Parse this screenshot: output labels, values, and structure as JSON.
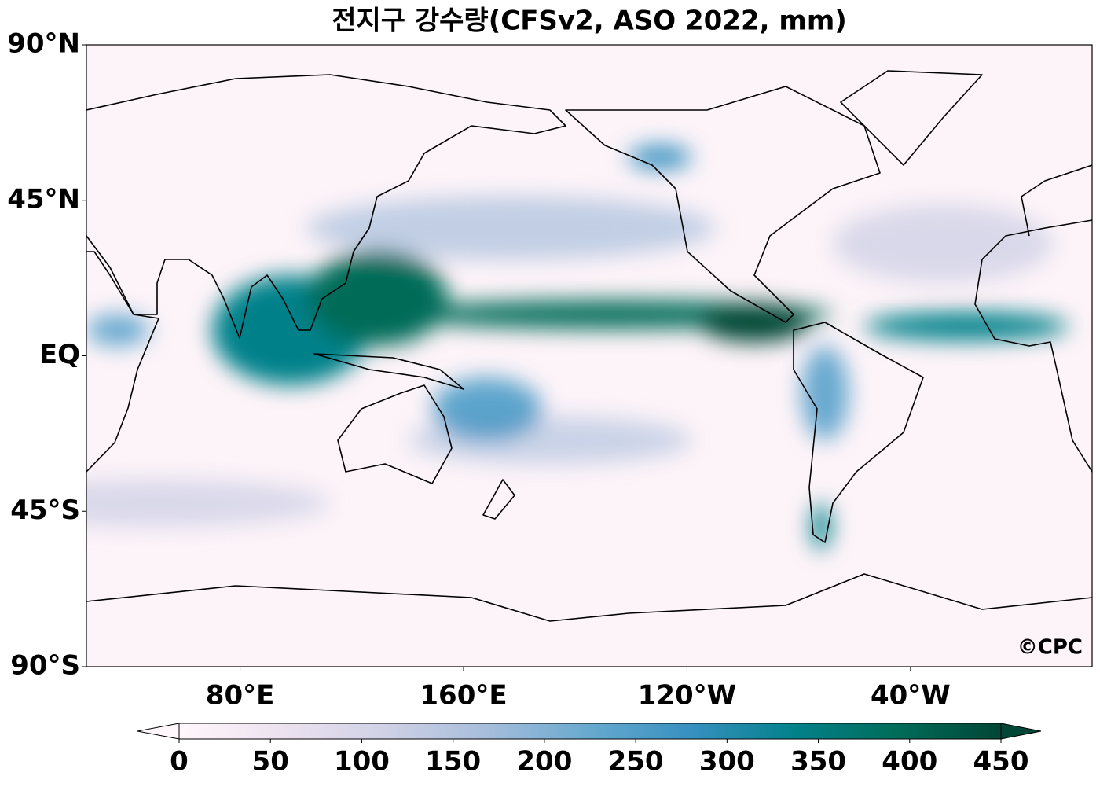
{
  "map": {
    "title": "전지구 강수량(CFSv2, ASO 2022, mm)",
    "lat_range": [
      -90,
      90
    ],
    "lon_range": [
      25,
      385
    ],
    "lat_labels": [
      {
        "value": 90,
        "label": "90°N"
      },
      {
        "value": 45,
        "label": "45°N"
      },
      {
        "value": 0,
        "label": "EQ"
      },
      {
        "value": -45,
        "label": "45°S"
      },
      {
        "value": -90,
        "label": "90°S"
      }
    ],
    "lon_labels": [
      {
        "value": 80,
        "label": "80°E"
      },
      {
        "value": 160,
        "label": "160°E"
      },
      {
        "value": 240,
        "label": "120°W"
      },
      {
        "value": 320,
        "label": "40°W"
      }
    ],
    "colorbar": {
      "lim": [
        0,
        450
      ],
      "ticks": [
        0,
        50,
        100,
        150,
        200,
        250,
        300,
        350,
        400,
        450
      ],
      "colors": [
        "#fff7fb",
        "#ece2f0",
        "#d0d1e6",
        "#a6bddb",
        "#67a9cf",
        "#3690c0",
        "#02818a",
        "#016c59",
        "#014636"
      ]
    },
    "credit": "©CPC"
  }
}
